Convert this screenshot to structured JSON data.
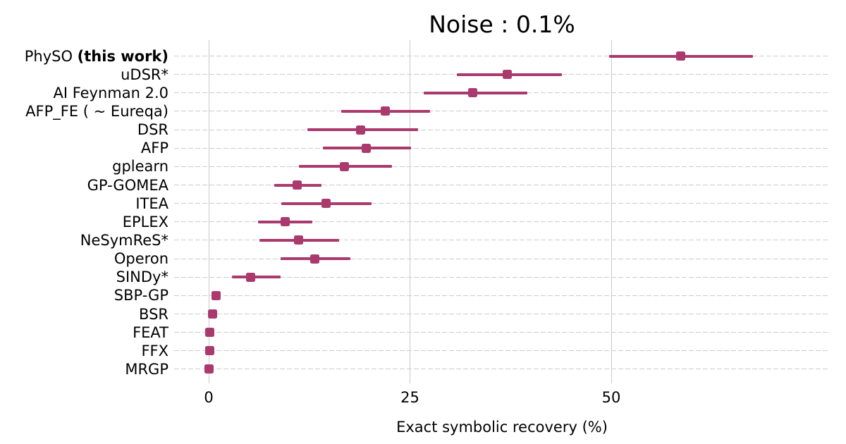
{
  "title": "Noise : 0.1%",
  "colors": {
    "marker": "#aa3a6e",
    "grid": "#cbcbcb",
    "text": "#000000",
    "background": "#ffffff"
  },
  "chart_data": {
    "type": "scatter",
    "subtype": "horizontal-dot-plot-with-error-bars",
    "title": "Noise : 0.1%",
    "xlabel": "Exact symbolic recovery (%)",
    "ylabel": "",
    "xlim": [
      -4,
      77
    ],
    "x_ticks": [
      0,
      25,
      50
    ],
    "x_tick_labels": [
      "0",
      "25",
      "50"
    ],
    "grid": true,
    "legend": "none",
    "points": [
      {
        "label": "PhySO (this work)",
        "label_parts": {
          "normal": "PhySO ",
          "bold": "(this work)"
        },
        "value": 58.6,
        "lo": 49.7,
        "hi": 67.6
      },
      {
        "label": "uDSR*",
        "value": 37.1,
        "lo": 30.8,
        "hi": 43.9
      },
      {
        "label": "AI Feynman 2.0",
        "value": 32.8,
        "lo": 26.7,
        "hi": 39.6
      },
      {
        "label": "AFP_FE ( ~ Eureqa)",
        "value": 21.9,
        "lo": 16.5,
        "hi": 27.5
      },
      {
        "label": "DSR",
        "value": 18.9,
        "lo": 12.3,
        "hi": 26.0
      },
      {
        "label": "AFP",
        "value": 19.6,
        "lo": 14.2,
        "hi": 25.1
      },
      {
        "label": "gplearn",
        "value": 16.9,
        "lo": 11.2,
        "hi": 22.8
      },
      {
        "label": "GP-GOMEA",
        "value": 11.0,
        "lo": 8.1,
        "hi": 14.0
      },
      {
        "label": "ITEA",
        "value": 14.6,
        "lo": 9.0,
        "hi": 20.2
      },
      {
        "label": "EPLEX",
        "value": 9.5,
        "lo": 6.1,
        "hi": 12.9
      },
      {
        "label": "NeSymReS*",
        "value": 11.2,
        "lo": 6.3,
        "hi": 16.2
      },
      {
        "label": "Operon",
        "value": 13.2,
        "lo": 8.9,
        "hi": 17.6
      },
      {
        "label": "SINDy*",
        "value": 5.2,
        "lo": 2.9,
        "hi": 8.9
      },
      {
        "label": "SBP-GP",
        "value": 0.9,
        "lo": 0.4,
        "hi": 1.5
      },
      {
        "label": "BSR",
        "value": 0.5,
        "lo": 0.2,
        "hi": 0.9
      },
      {
        "label": "FEAT",
        "value": 0.1,
        "lo": 0.0,
        "hi": 0.3
      },
      {
        "label": "FFX",
        "value": 0.1,
        "lo": 0.0,
        "hi": 0.3
      },
      {
        "label": "MRGP",
        "value": 0.0,
        "lo": 0.0,
        "hi": 0.2
      }
    ]
  }
}
